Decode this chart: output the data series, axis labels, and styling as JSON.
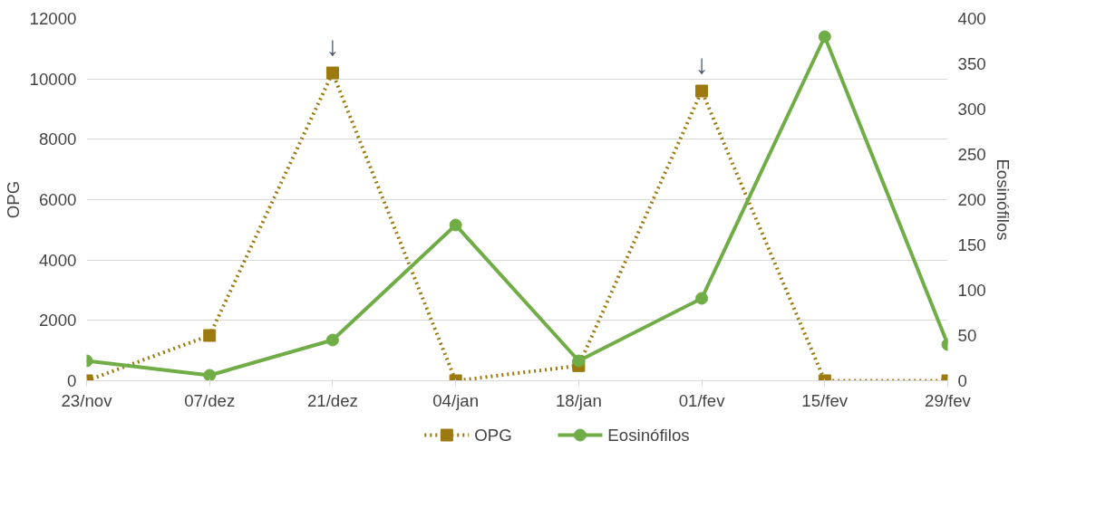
{
  "chart_data": {
    "type": "line",
    "categories": [
      "23/nov",
      "07/dez",
      "21/dez",
      "04/jan",
      "18/jan",
      "01/fev",
      "15/fev",
      "29/fev"
    ],
    "series": [
      {
        "name": "OPG",
        "color": "#9c7a10",
        "values": [
          0,
          1500,
          10200,
          0,
          500,
          9600,
          0,
          0
        ],
        "marker": "square",
        "line_style": "dotted"
      },
      {
        "name": "Eosinófilos",
        "color": "#70ad47",
        "values": [
          22,
          6,
          45,
          172,
          22,
          91,
          380,
          40
        ],
        "marker": "circle",
        "line_style": "solid",
        "axis": "y2"
      }
    ],
    "ylabel": "OPG",
    "y2label": "Eosinófilos",
    "ylim": [
      0,
      12000
    ],
    "yticks": [
      0,
      2000,
      4000,
      6000,
      8000,
      10000,
      12000
    ],
    "y2lim": [
      0,
      400
    ],
    "y2ticks": [
      0,
      50,
      100,
      150,
      200,
      250,
      300,
      350,
      400
    ],
    "annotations": [
      {
        "text": "↓",
        "x": "21/dez",
        "y": 10200
      },
      {
        "text": "↓",
        "x": "01/fev",
        "y": 9600
      }
    ],
    "grid": "y",
    "legend": "bottom"
  }
}
